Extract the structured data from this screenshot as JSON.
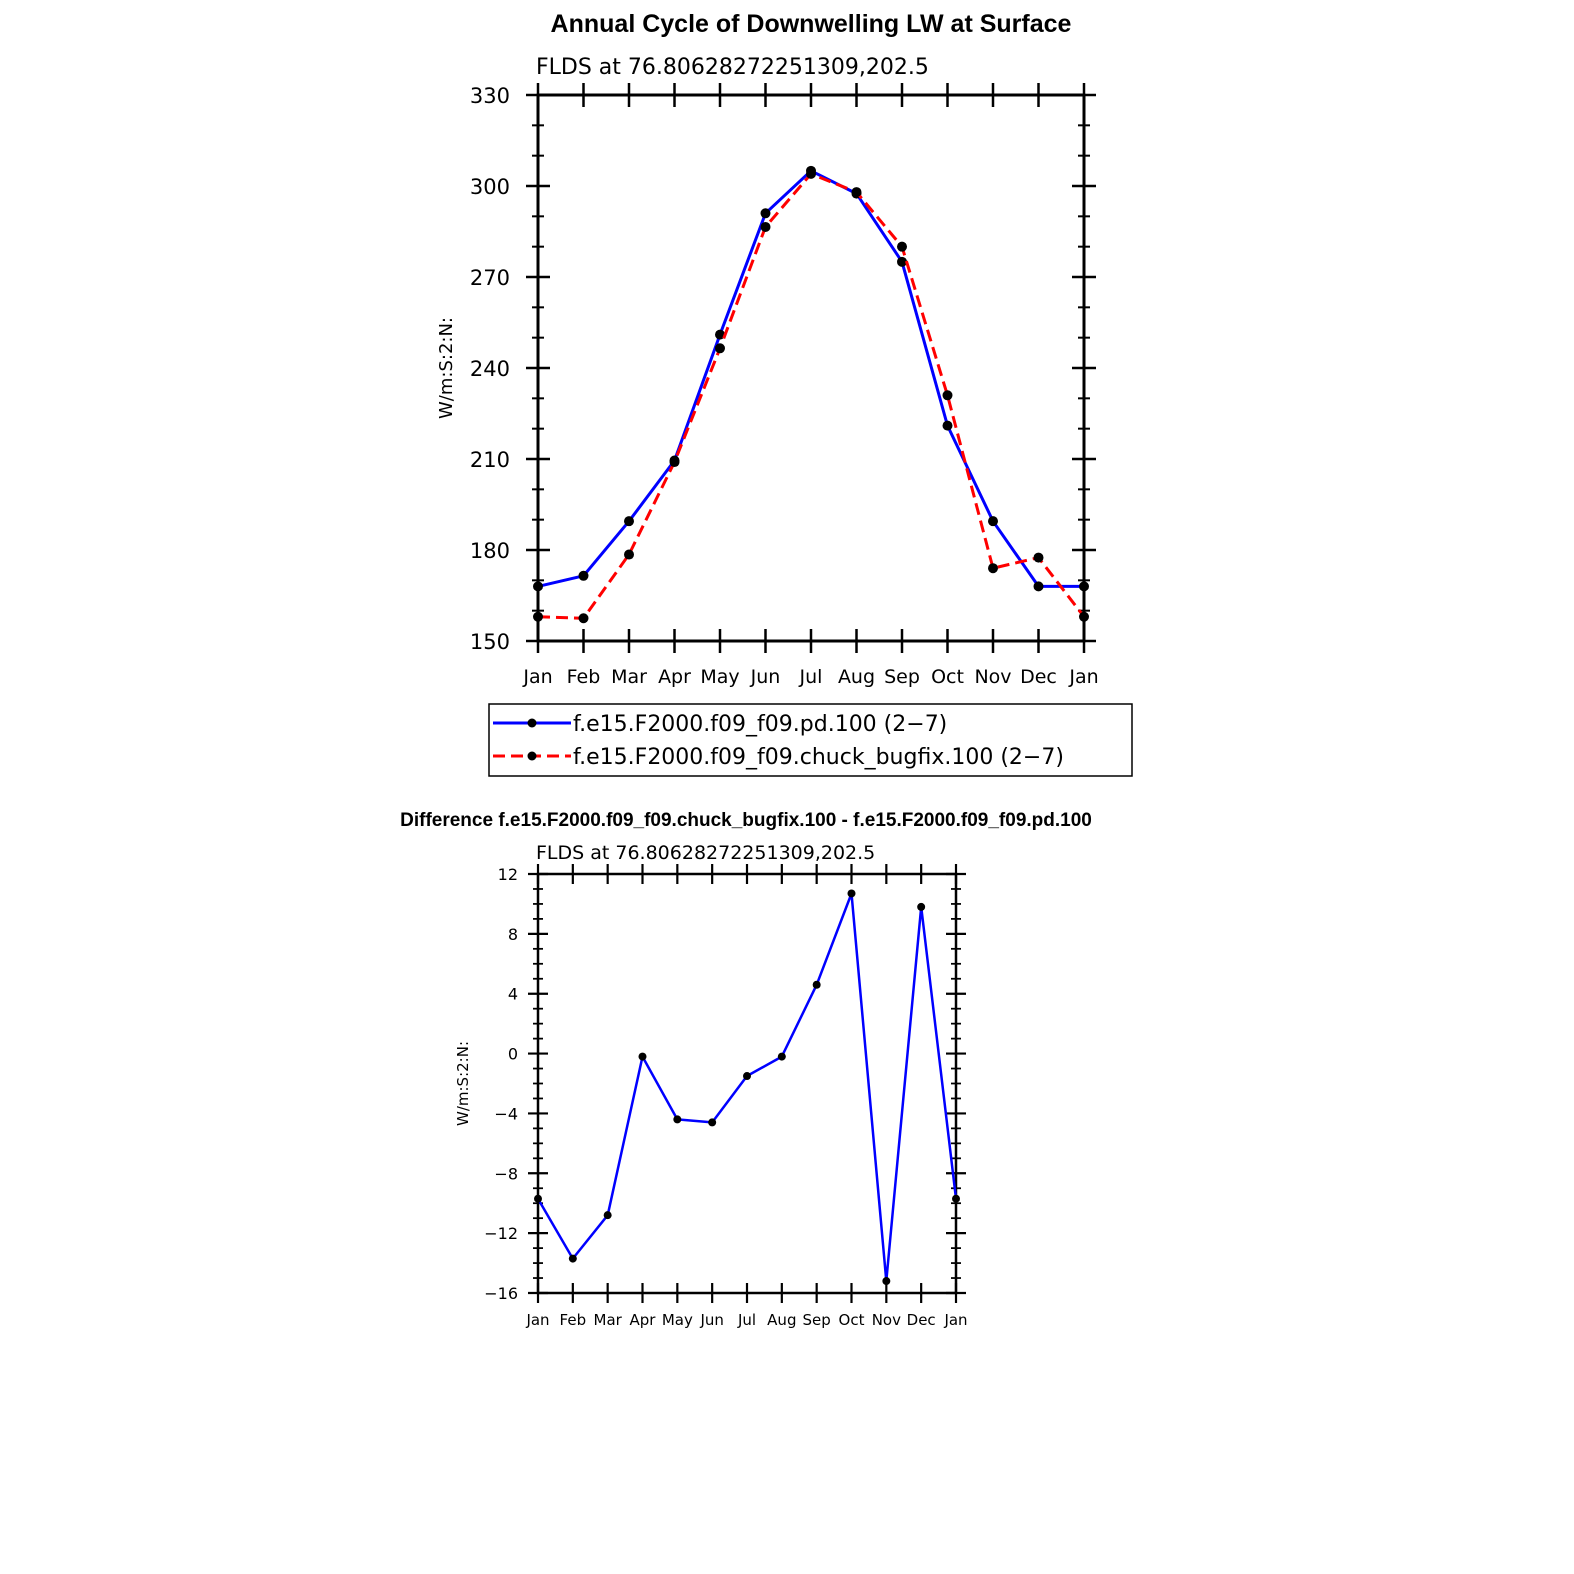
{
  "chart_data": [
    {
      "type": "line",
      "title": "Annual Cycle of Downwelling LW at Surface",
      "subtitle": "FLDS at 76.80628272251309,202.5",
      "ylabel": "W/m:S:2:N:",
      "ylim": [
        150,
        330
      ],
      "yticks": [
        "150",
        "180",
        "210",
        "240",
        "270",
        "300",
        "330"
      ],
      "categories": [
        "Jan",
        "Feb",
        "Mar",
        "Apr",
        "May",
        "Jun",
        "Jul",
        "Aug",
        "Sep",
        "Oct",
        "Nov",
        "Dec",
        "Jan"
      ],
      "legend_position": "below",
      "series": [
        {
          "name": "f.e15.F2000.f09_f09.pd.100 (2−7)",
          "color": "#0000ff",
          "dash": "solid",
          "values": [
            168,
            171.5,
            189.5,
            209.5,
            251,
            291,
            305,
            297.5,
            275,
            221,
            189.5,
            168,
            168
          ]
        },
        {
          "name": "f.e15.F2000.f09_f09.chuck_bugfix.100 (2−7)",
          "color": "#ff0000",
          "dash": "dashed",
          "values": [
            158,
            157.5,
            178.5,
            209,
            246.5,
            286.5,
            304,
            298,
            280,
            231,
            174,
            177.5,
            158
          ]
        }
      ]
    },
    {
      "type": "line",
      "title": "Difference f.e15.F2000.f09_f09.chuck_bugfix.100 - f.e15.F2000.f09_f09.pd.100",
      "subtitle": "FLDS at 76.80628272251309,202.5",
      "ylabel": "W/m:S:2:N:",
      "ylim": [
        -16,
        12
      ],
      "yticks": [
        "−16",
        "−12",
        "−8",
        "−4",
        "0",
        "4",
        "8",
        "12"
      ],
      "categories": [
        "Jan",
        "Feb",
        "Mar",
        "Apr",
        "May",
        "Jun",
        "Jul",
        "Aug",
        "Sep",
        "Oct",
        "Nov",
        "Dec",
        "Jan"
      ],
      "series": [
        {
          "color": "#0000ff",
          "dash": "solid",
          "values": [
            -9.7,
            -13.7,
            -10.8,
            -0.2,
            -4.4,
            -4.6,
            -1.5,
            -0.2,
            4.6,
            10.7,
            -15.2,
            9.8,
            -9.7
          ]
        }
      ]
    }
  ]
}
